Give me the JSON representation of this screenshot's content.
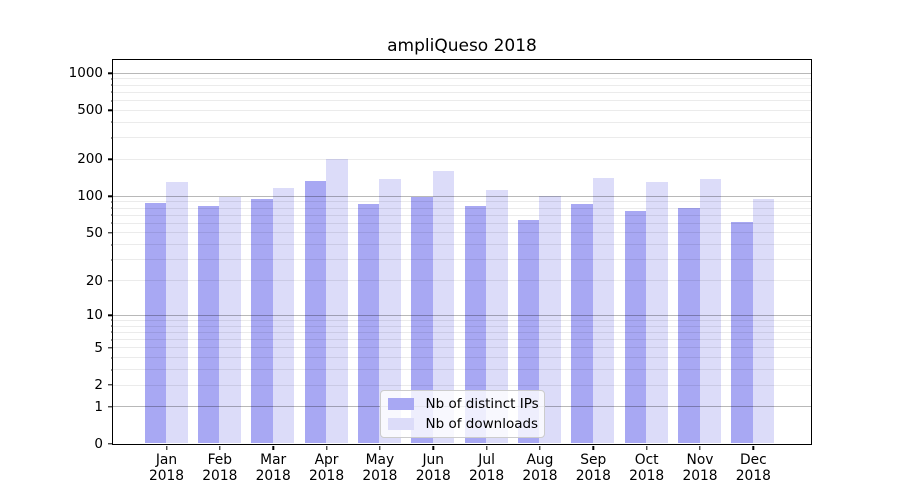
{
  "chart_data": {
    "type": "bar",
    "title": "ampliQueso 2018",
    "categories": [
      "Jan",
      "Feb",
      "Mar",
      "Apr",
      "May",
      "Jun",
      "Jul",
      "Aug",
      "Sep",
      "Oct",
      "Nov",
      "Dec"
    ],
    "category_year": "2018",
    "series": [
      {
        "name": "Nb of distinct IPs",
        "color": "#a8a8f3",
        "values": [
          88,
          82,
          94,
          133,
          85,
          97,
          82,
          63,
          85,
          75,
          80,
          61
        ]
      },
      {
        "name": "Nb of downloads",
        "color": "#dcdcf9",
        "values": [
          129,
          97,
          115,
          200,
          136,
          160,
          111,
          100,
          139,
          129,
          138,
          95
        ]
      }
    ],
    "yscale": "log1p",
    "yticks": [
      0,
      1,
      2,
      5,
      10,
      20,
      50,
      100,
      200,
      500,
      1000
    ],
    "major_gridlines": [
      1,
      10,
      100,
      1000
    ],
    "ylim": [
      0,
      1280
    ],
    "grid": true,
    "legend_position": "lower center",
    "axis_color": "#000000",
    "background_color": "#ffffff"
  }
}
